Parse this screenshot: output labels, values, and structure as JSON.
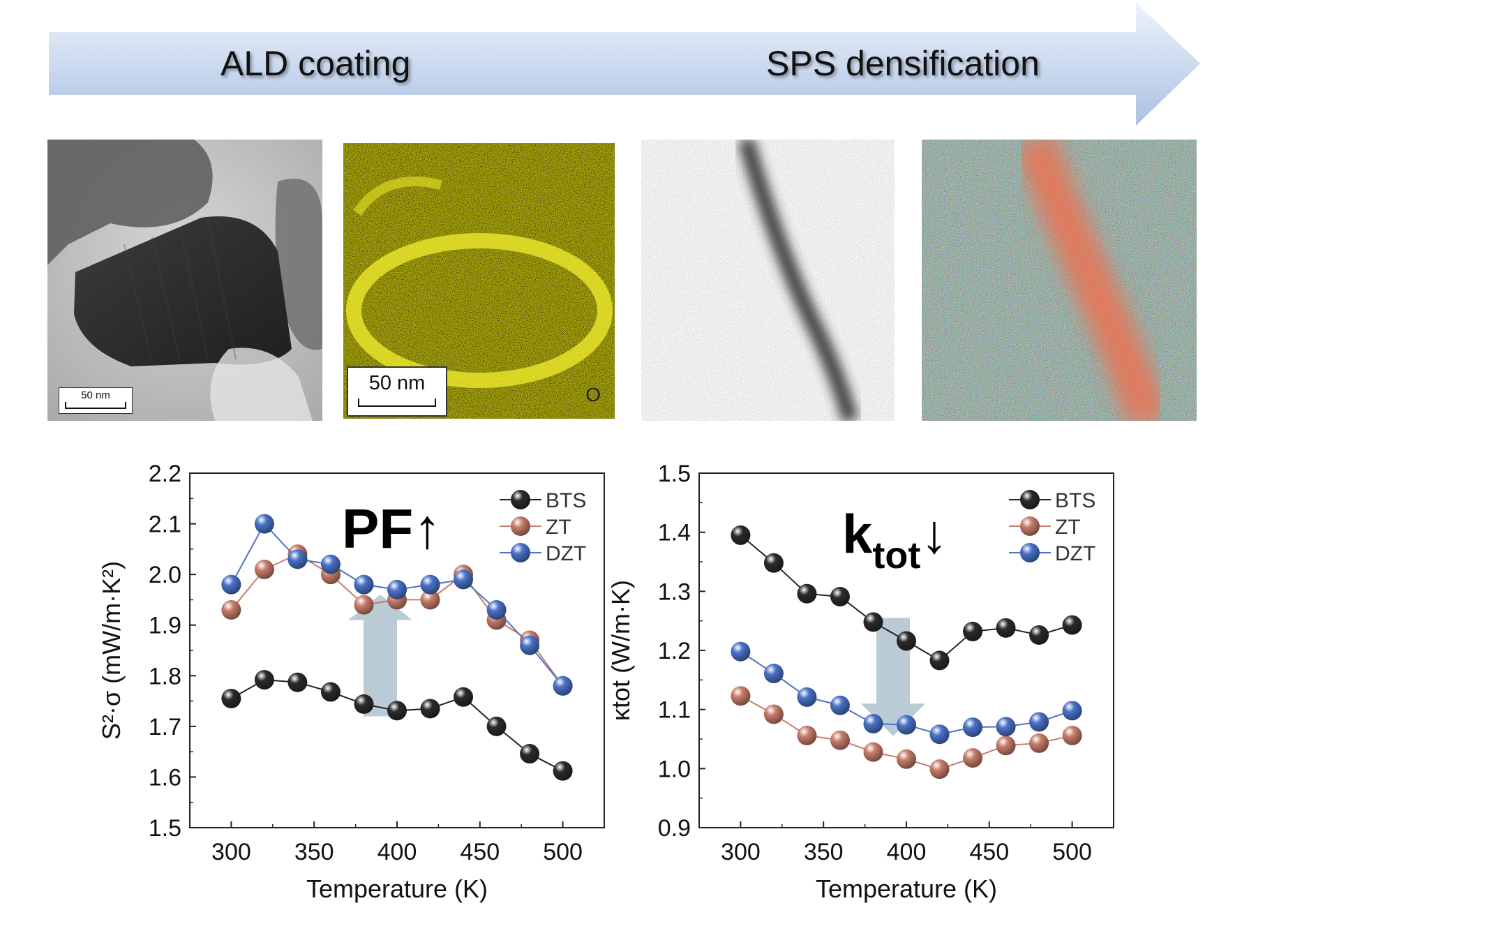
{
  "banner": {
    "left_label": "ALD coating",
    "right_label": "SPS densification"
  },
  "images": {
    "tem1": {
      "scale": "50 nm"
    },
    "map_o": {
      "scale": "50 nm",
      "element": "O"
    },
    "tem2": {},
    "map_multi": {}
  },
  "chart_data": [
    {
      "type": "line",
      "title": "",
      "annotation": "PF↑",
      "xlabel": "Temperature (K)",
      "ylabel": "S²·σ (mW/m·K²)",
      "xlim": [
        275,
        525
      ],
      "ylim": [
        1.5,
        2.2
      ],
      "xticks": [
        "300",
        "350",
        "400",
        "450",
        "500"
      ],
      "yticks": [
        "1.5",
        "1.6",
        "1.7",
        "1.8",
        "1.9",
        "2.0",
        "2.1",
        "2.2"
      ],
      "x": [
        300,
        320,
        340,
        360,
        380,
        400,
        420,
        440,
        460,
        480,
        500
      ],
      "legend_position": "top-right",
      "series": [
        {
          "name": "BTS",
          "color": "#2b2b2b",
          "values": [
            1.755,
            1.792,
            1.787,
            1.768,
            1.744,
            1.731,
            1.735,
            1.758,
            1.7,
            1.646,
            1.612
          ]
        },
        {
          "name": "ZT",
          "color": "#c87c6a",
          "values": [
            1.93,
            2.01,
            2.04,
            2.0,
            1.94,
            1.95,
            1.95,
            2.0,
            1.91,
            1.87,
            1.78
          ]
        },
        {
          "name": "DZT",
          "color": "#4a72c8",
          "values": [
            1.98,
            2.1,
            2.03,
            2.02,
            1.98,
            1.97,
            1.98,
            1.99,
            1.93,
            1.86,
            1.78
          ]
        }
      ],
      "arrow_direction": "up"
    },
    {
      "type": "line",
      "title": "",
      "annotation": "ktot↓",
      "xlabel": "Temperature (K)",
      "ylabel": "κtot (W/m·K)",
      "xlim": [
        275,
        525
      ],
      "ylim": [
        0.9,
        1.5
      ],
      "xticks": [
        "300",
        "350",
        "400",
        "450",
        "500"
      ],
      "yticks": [
        "0.9",
        "1.0",
        "1.1",
        "1.2",
        "1.3",
        "1.4",
        "1.5"
      ],
      "x": [
        300,
        320,
        340,
        360,
        380,
        400,
        420,
        440,
        460,
        480,
        500
      ],
      "legend_position": "top-right",
      "series": [
        {
          "name": "BTS",
          "color": "#2b2b2b",
          "values": [
            1.395,
            1.348,
            1.296,
            1.291,
            1.248,
            1.216,
            1.183,
            1.232,
            1.238,
            1.226,
            1.243
          ]
        },
        {
          "name": "ZT",
          "color": "#c87c6a",
          "values": [
            1.123,
            1.092,
            1.056,
            1.048,
            1.028,
            1.016,
            0.999,
            1.018,
            1.039,
            1.043,
            1.056
          ]
        },
        {
          "name": "DZT",
          "color": "#4a72c8",
          "values": [
            1.198,
            1.161,
            1.121,
            1.107,
            1.076,
            1.074,
            1.058,
            1.07,
            1.071,
            1.079,
            1.098
          ]
        }
      ],
      "arrow_direction": "down"
    }
  ]
}
